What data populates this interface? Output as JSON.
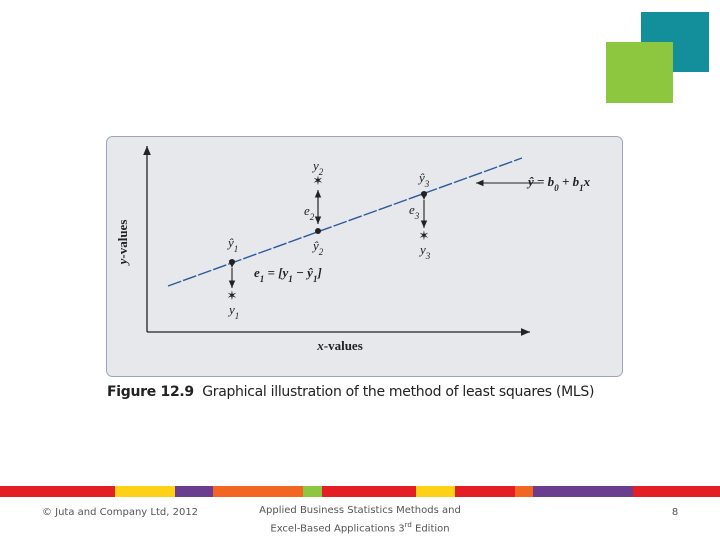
{
  "figure": {
    "axis_labels": {
      "y": [
        {
          "text": "y",
          "italic": true
        },
        {
          "text": "-values"
        }
      ],
      "x": [
        {
          "text": "x",
          "italic": true
        },
        {
          "text": "-values"
        }
      ]
    },
    "labels": [
      {
        "name": "y2",
        "parts": [
          {
            "text": "y"
          },
          {
            "text": "2",
            "sub": true
          }
        ]
      },
      {
        "name": "yhat3",
        "parts": [
          {
            "text": "ŷ"
          },
          {
            "text": "3",
            "sub": true
          }
        ]
      },
      {
        "name": "equation",
        "parts": [
          {
            "text": "ŷ = b"
          },
          {
            "text": "0",
            "sub": true
          },
          {
            "text": " + b"
          },
          {
            "text": "1",
            "sub": true
          },
          {
            "text": "x"
          }
        ]
      },
      {
        "name": "e2",
        "parts": [
          {
            "text": "e"
          },
          {
            "text": "2",
            "sub": true
          }
        ]
      },
      {
        "name": "e3",
        "parts": [
          {
            "text": "e"
          },
          {
            "text": "3",
            "sub": true
          }
        ]
      },
      {
        "name": "yhat1",
        "parts": [
          {
            "text": "ŷ"
          },
          {
            "text": "1",
            "sub": true
          }
        ]
      },
      {
        "name": "yhat2",
        "parts": [
          {
            "text": "ŷ"
          },
          {
            "text": "2",
            "sub": true
          }
        ]
      },
      {
        "name": "y3",
        "parts": [
          {
            "text": "y"
          },
          {
            "text": "3",
            "sub": true
          }
        ]
      },
      {
        "name": "e1",
        "parts": [
          {
            "text": "e"
          },
          {
            "text": "1",
            "sub": true
          },
          {
            "text": " = [y"
          },
          {
            "text": "1",
            "sub": true
          },
          {
            "text": " − ŷ"
          },
          {
            "text": "1",
            "sub": true
          },
          {
            "text": "]"
          }
        ]
      },
      {
        "name": "y1",
        "parts": [
          {
            "text": "y"
          },
          {
            "text": "1",
            "sub": true
          }
        ]
      }
    ],
    "caption": {
      "number": "Figure 12.9",
      "text": "Graphical illustration of the method of least squares (MLS)"
    }
  },
  "footer": {
    "copyright": "© Juta and Company Ltd, 2012",
    "book": {
      "line1": "Applied Business Statistics Methods and",
      "line2": "Excel-Based Applications 3",
      "sup": "rd",
      "after": " Edition"
    },
    "page": "8"
  }
}
